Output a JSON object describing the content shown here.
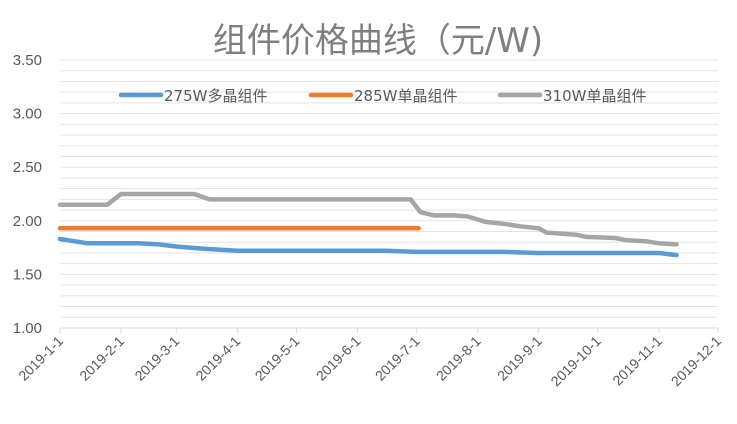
{
  "chart_data": {
    "type": "line",
    "title": "组件价格曲线（元/W)",
    "xlabel": "",
    "ylabel": "",
    "ylim": [
      1.0,
      3.5
    ],
    "xlim": [
      "2019-01-01",
      "2019-12-01"
    ],
    "y_ticks": [
      "1.00",
      "1.50",
      "2.00",
      "2.50",
      "3.00",
      "3.50"
    ],
    "y_tick_values": [
      1.0,
      1.5,
      2.0,
      2.5,
      3.0,
      3.5
    ],
    "x_ticks": [
      "2019-1-1",
      "2019-2-1",
      "2019-3-1",
      "2019-4-1",
      "2019-5-1",
      "2019-6-1",
      "2019-7-1",
      "2019-8-1",
      "2019-9-1",
      "2019-10-1",
      "2019-11-1",
      "2019-12-1"
    ],
    "x_tick_dates": [
      "2019-01-01",
      "2019-02-01",
      "2019-03-01",
      "2019-04-01",
      "2019-05-01",
      "2019-06-01",
      "2019-07-01",
      "2019-08-01",
      "2019-09-01",
      "2019-10-01",
      "2019-11-01",
      "2019-12-01"
    ],
    "grid": true,
    "legend": "top",
    "series": [
      {
        "name": "275W多晶组件",
        "color": "#5b9bd5",
        "x": [
          "2019-01-01",
          "2019-01-15",
          "2019-02-10",
          "2019-02-20",
          "2019-03-01",
          "2019-03-15",
          "2019-04-01",
          "2019-06-15",
          "2019-07-01",
          "2019-08-15",
          "2019-09-01",
          "2019-11-01",
          "2019-11-10"
        ],
        "values": [
          1.83,
          1.79,
          1.79,
          1.78,
          1.76,
          1.74,
          1.72,
          1.72,
          1.71,
          1.71,
          1.7,
          1.7,
          1.68
        ]
      },
      {
        "name": "285W单晶组件",
        "color": "#ed7d31",
        "x": [
          "2019-01-01",
          "2019-07-02"
        ],
        "values": [
          1.93,
          1.93
        ]
      },
      {
        "name": "310W单晶组件",
        "color": "#a5a5a5",
        "x": [
          "2019-01-01",
          "2019-01-25",
          "2019-02-01",
          "2019-03-10",
          "2019-03-18",
          "2019-06-28",
          "2019-07-03",
          "2019-07-10",
          "2019-07-20",
          "2019-07-27",
          "2019-08-05",
          "2019-08-15",
          "2019-08-22",
          "2019-09-01",
          "2019-09-05",
          "2019-09-20",
          "2019-09-25",
          "2019-10-10",
          "2019-10-15",
          "2019-10-25",
          "2019-11-01",
          "2019-11-10"
        ],
        "values": [
          2.15,
          2.15,
          2.25,
          2.25,
          2.2,
          2.2,
          2.08,
          2.05,
          2.05,
          2.04,
          1.99,
          1.97,
          1.95,
          1.93,
          1.89,
          1.87,
          1.85,
          1.84,
          1.82,
          1.81,
          1.79,
          1.78
        ]
      }
    ]
  }
}
